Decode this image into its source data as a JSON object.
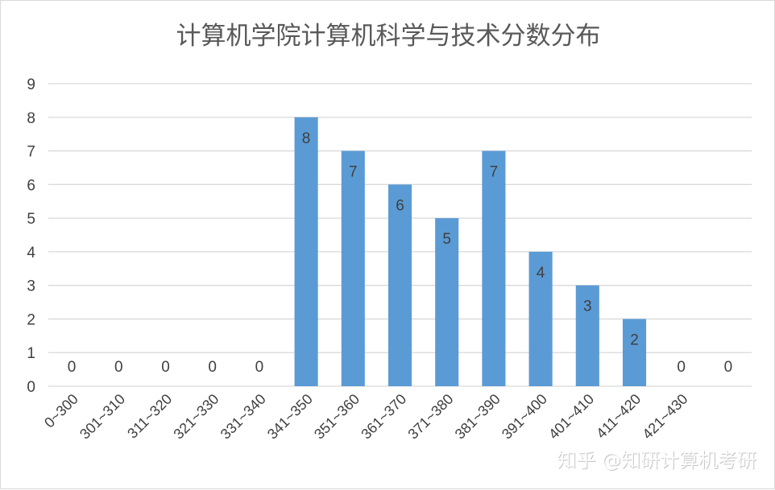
{
  "chart_data": {
    "type": "bar",
    "title": "计算机学院计算机科学与技术分数分布",
    "xlabel": "",
    "ylabel": "",
    "categories": [
      "0~300",
      "301~310",
      "311~320",
      "321~330",
      "331~340",
      "341~350",
      "351~360",
      "361~370",
      "371~380",
      "381~390",
      "391~400",
      "401~410",
      "411~420",
      "421~430",
      ""
    ],
    "values": [
      0,
      0,
      0,
      0,
      0,
      8,
      7,
      6,
      5,
      7,
      4,
      3,
      2,
      0,
      0
    ],
    "ylim": [
      0,
      9
    ],
    "yticks": [
      0,
      1,
      2,
      3,
      4,
      5,
      6,
      7,
      8,
      9
    ],
    "grid": true,
    "legend": "none",
    "data_labels": true,
    "bar_color": "#5b9bd5",
    "grid_color": "#d9d9d9"
  },
  "watermark": "知乎 @知研计算机考研"
}
